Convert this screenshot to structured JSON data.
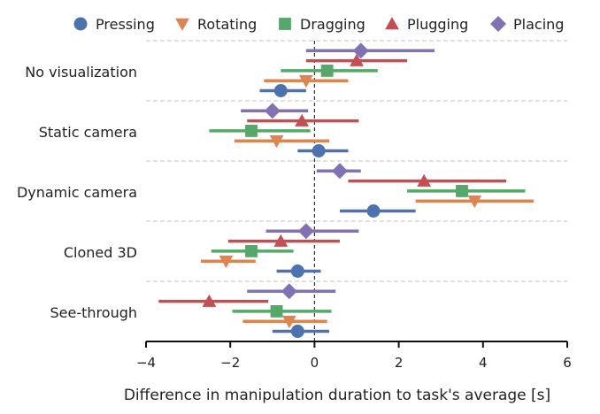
{
  "chart_data": {
    "type": "dot-interval",
    "title": "",
    "xlabel": "Difference in manipulation duration to task's average [s]",
    "ylabel": "",
    "xlim": [
      -4,
      6
    ],
    "xticks": [
      -4,
      -2,
      0,
      2,
      4,
      6
    ],
    "xtick_labels": [
      "−4",
      "−2",
      "0",
      "2",
      "4",
      "6"
    ],
    "grid": "horizontal dashed separators between groups",
    "reference_line": 0,
    "legend_position": "top",
    "categories": [
      "No visualization",
      "Static camera",
      "Dynamic camera",
      "Cloned 3D",
      "See-through"
    ],
    "series": [
      {
        "name": "Pressing",
        "marker": "circle",
        "color": "#4C72B0",
        "values": [
          -0.8,
          0.1,
          1.4,
          -0.4,
          -0.4
        ],
        "ci": [
          [
            -1.3,
            -0.2
          ],
          [
            -0.4,
            0.8
          ],
          [
            0.6,
            2.4
          ],
          [
            -0.9,
            0.15
          ],
          [
            -1.0,
            0.35
          ]
        ]
      },
      {
        "name": "Rotating",
        "marker": "triangle-down",
        "color": "#DD8452",
        "values": [
          -0.2,
          -0.9,
          3.8,
          -2.1,
          -0.6
        ],
        "ci": [
          [
            -1.2,
            0.8
          ],
          [
            -1.9,
            0.35
          ],
          [
            2.4,
            5.2
          ],
          [
            -2.7,
            -1.4
          ],
          [
            -1.7,
            0.3
          ]
        ]
      },
      {
        "name": "Dragging",
        "marker": "square",
        "color": "#55A868",
        "values": [
          0.3,
          -1.5,
          3.5,
          -1.5,
          -0.9
        ],
        "ci": [
          [
            -0.8,
            1.5
          ],
          [
            -2.5,
            -0.1
          ],
          [
            2.2,
            5.0
          ],
          [
            -2.45,
            -0.5
          ],
          [
            -1.95,
            0.4
          ]
        ]
      },
      {
        "name": "Plugging",
        "marker": "triangle-up",
        "color": "#C44E52",
        "values": [
          1.0,
          -0.3,
          2.6,
          -0.8,
          -2.5
        ],
        "ci": [
          [
            -0.2,
            2.2
          ],
          [
            -1.6,
            1.05
          ],
          [
            0.8,
            4.55
          ],
          [
            -2.05,
            0.6
          ],
          [
            -3.7,
            -1.1
          ]
        ]
      },
      {
        "name": "Placing",
        "marker": "diamond",
        "color": "#8172B3",
        "values": [
          1.1,
          -1.0,
          0.6,
          -0.2,
          -0.6
        ],
        "ci": [
          [
            -0.2,
            2.85
          ],
          [
            -1.75,
            -0.15
          ],
          [
            0.05,
            1.1
          ],
          [
            -1.15,
            1.05
          ],
          [
            -1.6,
            0.5
          ]
        ]
      }
    ]
  }
}
